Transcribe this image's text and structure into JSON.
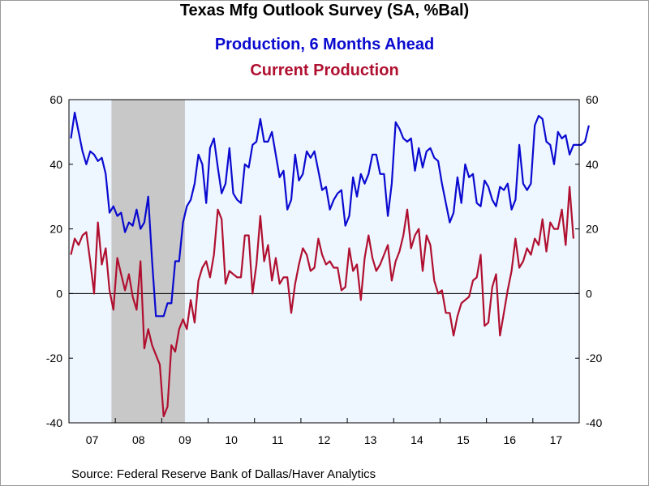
{
  "chart_data": {
    "type": "line",
    "title": "Texas Mfg Outlook Survey (SA, %Bal)",
    "subtitle_lines": [
      "Production, 6 Months Ahead",
      "Current Production"
    ],
    "source": "Source:  Federal Reserve Bank of Dallas/Haver Analytics",
    "x_labels": [
      "07",
      "08",
      "09",
      "10",
      "11",
      "12",
      "13",
      "14",
      "15",
      "16",
      "17"
    ],
    "x_range": [
      "2007-01",
      "2017-12"
    ],
    "ylim": [
      -40,
      60
    ],
    "yticks": [
      "60",
      "40",
      "20",
      "0",
      "-20",
      "-40"
    ],
    "recession_shading": {
      "start": "2007-12",
      "end": "2009-06"
    },
    "colors": {
      "production_6m": "#0a0ad0",
      "current": "#b01030",
      "recession": "#c8c8c8",
      "plot_bg": "#eef6ff"
    },
    "series": [
      {
        "name": "Production, 6 Months Ahead",
        "color": "#0a0ad0",
        "values": [
          48,
          56,
          50,
          44,
          40,
          44,
          43,
          41,
          42,
          37,
          25,
          27,
          24,
          25,
          19,
          22,
          21,
          26,
          20,
          22,
          30,
          10,
          -7,
          -7,
          -7,
          -3,
          -3,
          10,
          10,
          22,
          27,
          29,
          34,
          43,
          40,
          28,
          45,
          48,
          39,
          31,
          34,
          45,
          31,
          29,
          28,
          40,
          39,
          46,
          47,
          54,
          47,
          47,
          50,
          43,
          36,
          38,
          26,
          29,
          43,
          35,
          37,
          44,
          42,
          44,
          38,
          32,
          33,
          26,
          29,
          31,
          32,
          21,
          24,
          36,
          30,
          37,
          34,
          37,
          43,
          43,
          37,
          37,
          24,
          34,
          53,
          51,
          48,
          47,
          48,
          38,
          45,
          39,
          44,
          45,
          42,
          41,
          34,
          28,
          22,
          25,
          36,
          28,
          40,
          36,
          37,
          28,
          27,
          35,
          33,
          29,
          27,
          33,
          32,
          34,
          26,
          29,
          46,
          34,
          32,
          34,
          52,
          55,
          54,
          47,
          46,
          40,
          50,
          48,
          49,
          43,
          46,
          46,
          46,
          47,
          52
        ]
      },
      {
        "name": "Current Production",
        "color": "#b01030",
        "values": [
          12,
          17,
          15,
          18,
          19,
          10,
          0,
          22,
          9,
          14,
          1,
          -5,
          11,
          6,
          1,
          6,
          -1,
          -5,
          10,
          -17,
          -11,
          -16,
          -19,
          -22,
          -38,
          -35,
          -16,
          -18,
          -11,
          -8,
          -11,
          -2,
          -9,
          4,
          8,
          10,
          5,
          12,
          26,
          23,
          3,
          7,
          6,
          5,
          5,
          18,
          18,
          0,
          9,
          24,
          10,
          15,
          4,
          11,
          3,
          5,
          5,
          -6,
          3,
          9,
          14,
          12,
          7,
          8,
          17,
          12,
          9,
          10,
          8,
          8,
          1,
          2,
          14,
          7,
          9,
          -2,
          11,
          18,
          11,
          7,
          9,
          12,
          15,
          4,
          10,
          13,
          18,
          26,
          14,
          18,
          20,
          7,
          18,
          15,
          4,
          0,
          1,
          -6,
          -6,
          -13,
          -7,
          -3,
          -2,
          -1,
          4,
          5,
          12,
          -10,
          -9,
          2,
          6,
          -13,
          -6,
          1,
          7,
          17,
          8,
          10,
          14,
          12,
          17,
          15,
          23,
          13,
          22,
          20,
          20,
          26,
          15,
          33,
          17
        ]
      }
    ]
  }
}
